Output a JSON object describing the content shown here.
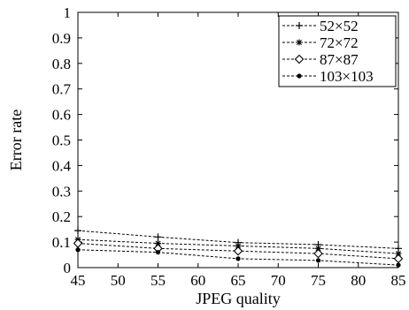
{
  "chart_data": {
    "type": "line",
    "title": "",
    "xlabel": "JPEG quality",
    "ylabel": "Error rate",
    "xlim": [
      45,
      85
    ],
    "ylim": [
      0,
      1
    ],
    "x_ticks": [
      "45",
      "50",
      "55",
      "60",
      "65",
      "70",
      "75",
      "80",
      "85"
    ],
    "y_ticks": [
      "0",
      "0.1",
      "0.2",
      "0.3",
      "0.4",
      "0.5",
      "0.6",
      "0.7",
      "0.8",
      "0.9",
      "1"
    ],
    "grid": false,
    "legend_position": "top-right",
    "series": [
      {
        "name": "52×52",
        "marker": "plus",
        "x": [
          45,
          55,
          65,
          75,
          85
        ],
        "y": [
          0.145,
          0.12,
          0.098,
          0.09,
          0.075
        ]
      },
      {
        "name": "72×72",
        "marker": "asterisk",
        "x": [
          45,
          55,
          65,
          75,
          85
        ],
        "y": [
          0.11,
          0.095,
          0.085,
          0.075,
          0.055
        ]
      },
      {
        "name": "87×87",
        "marker": "diamond",
        "x": [
          45,
          55,
          65,
          75,
          85
        ],
        "y": [
          0.095,
          0.075,
          0.065,
          0.055,
          0.035
        ]
      },
      {
        "name": "103×103",
        "marker": "dot",
        "x": [
          45,
          55,
          65,
          75,
          85
        ],
        "y": [
          0.07,
          0.06,
          0.035,
          0.028,
          0.01
        ]
      }
    ]
  }
}
